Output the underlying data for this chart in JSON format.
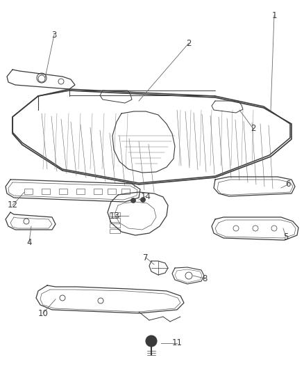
{
  "background_color": "#ffffff",
  "line_color": "#3a3a3a",
  "label_color": "#3a3a3a",
  "thin_color": "#555555",
  "fig_width": 4.38,
  "fig_height": 5.33,
  "dpi": 100
}
